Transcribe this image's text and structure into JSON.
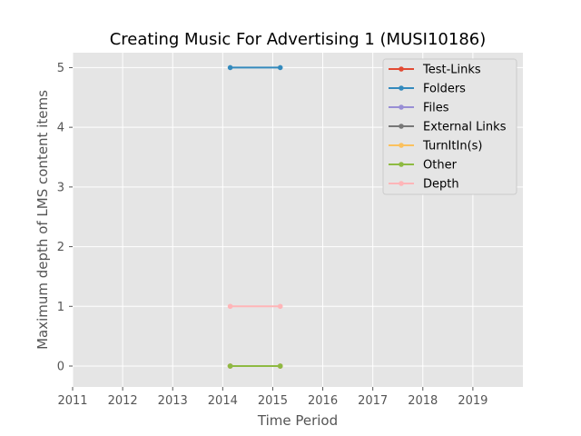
{
  "chart_data": {
    "type": "line",
    "title": "Creating Music For Advertising 1 (MUSI10186)",
    "xlabel": "Time Period",
    "ylabel": "Maximum depth of LMS content items",
    "xlim": [
      2011,
      2020
    ],
    "ylim": [
      -0.35,
      5.25
    ],
    "xticks": [
      2011,
      2012,
      2013,
      2014,
      2015,
      2016,
      2017,
      2018,
      2019
    ],
    "yticks": [
      0,
      1,
      2,
      3,
      4,
      5
    ],
    "grid": true,
    "legend_position": "top-right",
    "series": [
      {
        "name": "Test-Links",
        "color": "#E24A33",
        "points": [
          [
            2014.15,
            0
          ],
          [
            2015.15,
            0
          ]
        ]
      },
      {
        "name": "Folders",
        "color": "#348ABD",
        "points": [
          [
            2014.15,
            5
          ],
          [
            2015.15,
            5
          ]
        ]
      },
      {
        "name": "Files",
        "color": "#988ED5",
        "points": [
          [
            2014.15,
            0
          ],
          [
            2015.15,
            0
          ]
        ]
      },
      {
        "name": "External Links",
        "color": "#777777",
        "points": [
          [
            2014.15,
            0
          ],
          [
            2015.15,
            0
          ]
        ]
      },
      {
        "name": "TurnItIn(s)",
        "color": "#FBC15E",
        "points": [
          [
            2014.15,
            0
          ],
          [
            2015.15,
            0
          ]
        ]
      },
      {
        "name": "Other",
        "color": "#8EBA42",
        "points": [
          [
            2014.15,
            0
          ],
          [
            2015.15,
            0
          ]
        ]
      },
      {
        "name": "Depth",
        "color": "#FFB5B8",
        "points": [
          [
            2014.15,
            1
          ],
          [
            2015.15,
            1
          ]
        ]
      }
    ]
  }
}
